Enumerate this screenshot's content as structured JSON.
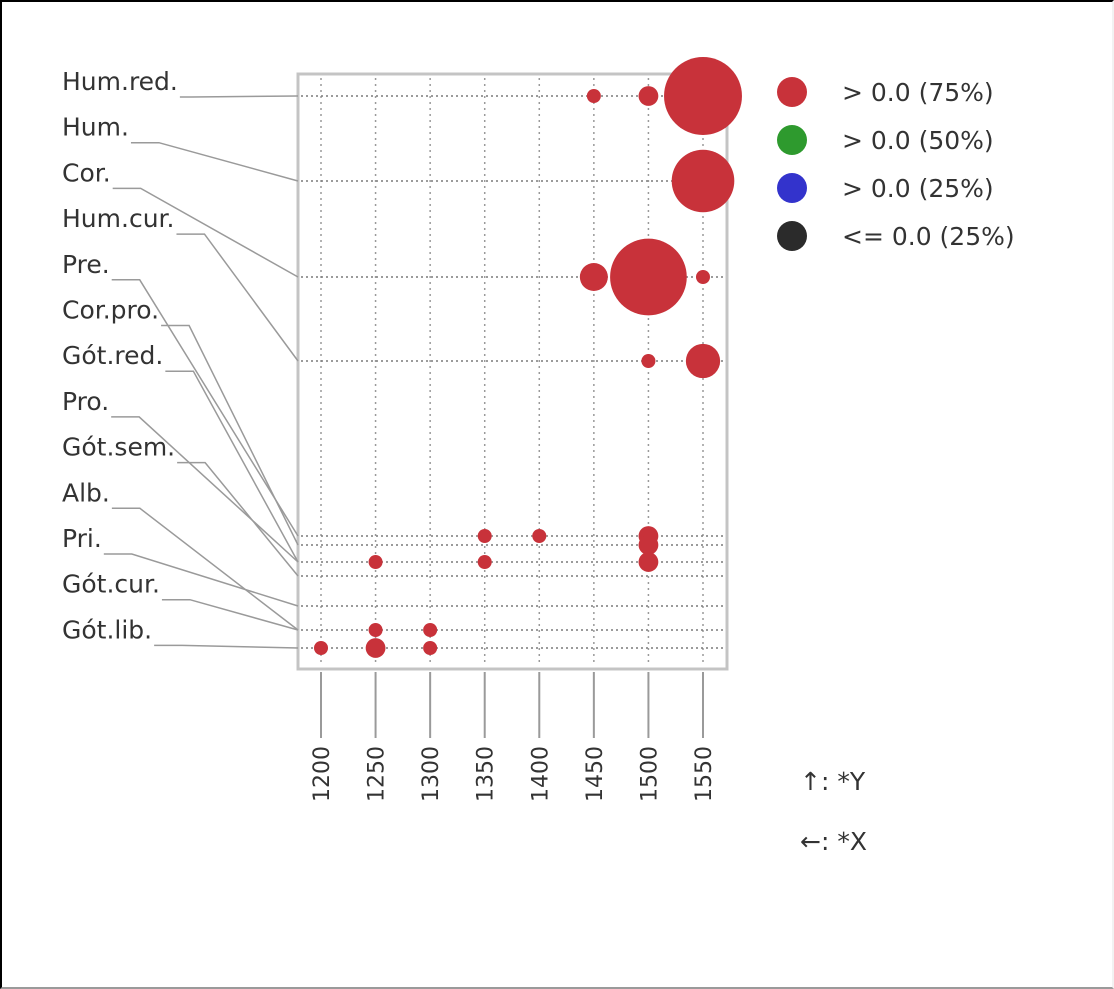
{
  "chart_data": {
    "type": "scatter",
    "title": "",
    "xlabel": "",
    "ylabel": "",
    "x_ticks": [
      "1200",
      "1250",
      "1300",
      "1350",
      "1400",
      "1450",
      "1500",
      "1550"
    ],
    "y_labels": [
      "Hum.red.",
      "Hum.",
      "Cor.",
      "Hum.cur.",
      "Pre.",
      "Cor.pro.",
      "Gót.red.",
      "Pro.",
      "Gót.sem.",
      "Alb.",
      "Pri.",
      "Gót.cur.",
      "Gót.lib."
    ],
    "points": [
      {
        "label": "Hum.red.",
        "x": 1450,
        "size": 1
      },
      {
        "label": "Hum.red.",
        "x": 1500,
        "size": 2
      },
      {
        "label": "Hum.red.",
        "x": 1550,
        "size": 31
      },
      {
        "label": "Hum.",
        "x": 1550,
        "size": 20
      },
      {
        "label": "Cor.",
        "x": 1450,
        "size": 4
      },
      {
        "label": "Cor.",
        "x": 1500,
        "size": 30
      },
      {
        "label": "Cor.",
        "x": 1550,
        "size": 1
      },
      {
        "label": "Hum.cur.",
        "x": 1500,
        "size": 1
      },
      {
        "label": "Hum.cur.",
        "x": 1550,
        "size": 6
      },
      {
        "label": "Pre.",
        "x": 1350,
        "size": 1
      },
      {
        "label": "Pre.",
        "x": 1400,
        "size": 1
      },
      {
        "label": "Pre.",
        "x": 1500,
        "size": 2
      },
      {
        "label": "Cor.pro.",
        "x": 1500,
        "size": 2
      },
      {
        "label": "Gót.red.",
        "x": 1250,
        "size": 1
      },
      {
        "label": "Gót.red.",
        "x": 1350,
        "size": 1
      },
      {
        "label": "Gót.red.",
        "x": 1500,
        "size": 2
      },
      {
        "label": "Pro.",
        "x": 1500,
        "size": 1
      },
      {
        "label": "Alb.",
        "x": 1250,
        "size": 1
      },
      {
        "label": "Alb.",
        "x": 1300,
        "size": 1
      },
      {
        "label": "Gót.lib.",
        "x": 1200,
        "size": 1
      },
      {
        "label": "Gót.lib.",
        "x": 1250,
        "size": 2
      },
      {
        "label": "Gót.lib.",
        "x": 1300,
        "size": 1
      }
    ],
    "legend": [
      {
        "label": "> 0.0 (75%)",
        "color": "#c8323a"
      },
      {
        "label": "> 0.0 (50%)",
        "color": "#2e9a2e"
      },
      {
        "label": "> 0.0 (25%)",
        "color": "#3333cc"
      },
      {
        "label": "<= 0.0 (25%)",
        "color": "#2b2b2b"
      }
    ],
    "legend_position": "right",
    "grid": true,
    "axis_notes": [
      "↑: *Y",
      "←: *X"
    ]
  }
}
